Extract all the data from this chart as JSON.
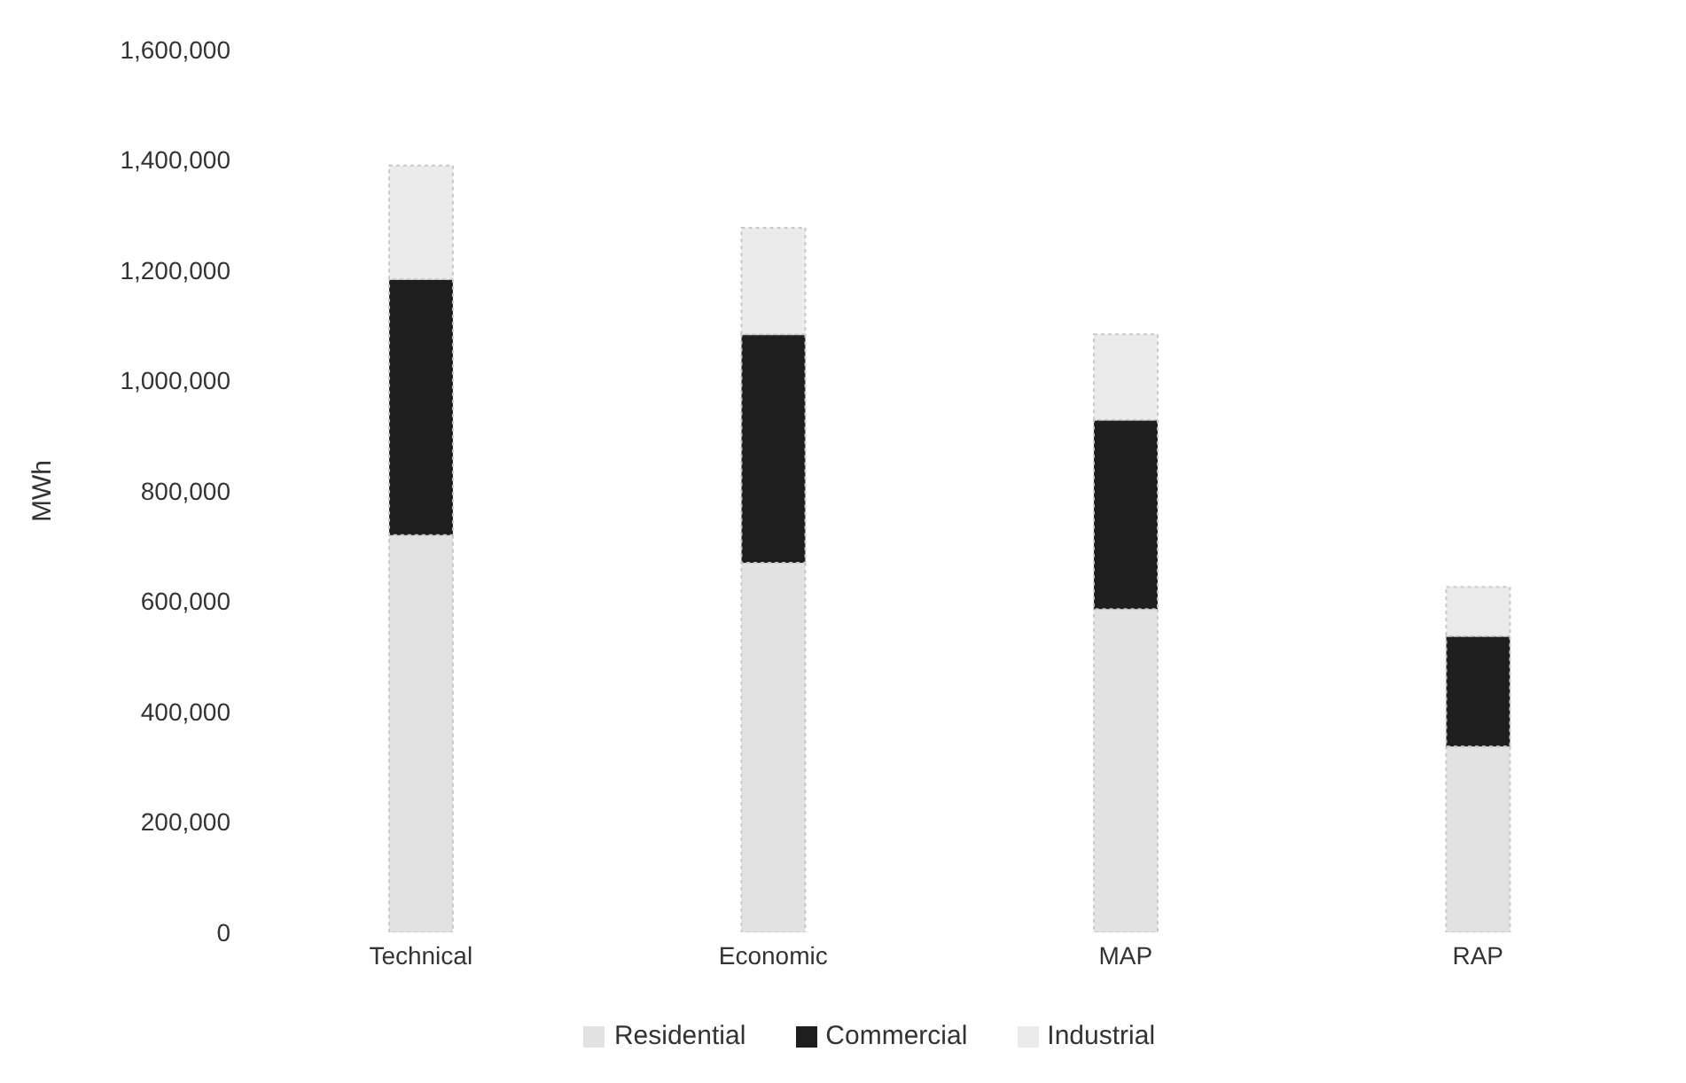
{
  "chart_data": {
    "type": "bar",
    "stacked": true,
    "ylabel": "MWh",
    "categories": [
      "Technical",
      "Economic",
      "MAP",
      "RAP"
    ],
    "series": [
      {
        "name": "Residential",
        "color": "#e2e2e2",
        "values": [
          720000,
          670000,
          586000,
          337000
        ]
      },
      {
        "name": "Commercial",
        "color": "#1e1e1e",
        "values": [
          464000,
          414000,
          343000,
          200000
        ]
      },
      {
        "name": "Industrial",
        "color": "#ebebeb",
        "values": [
          206000,
          193000,
          155000,
          89000
        ]
      }
    ],
    "ylim": [
      0,
      1600000
    ],
    "yticks": [
      0,
      {
        "value": 200000,
        "label": "200,000"
      },
      {
        "value": 400000,
        "label": "400,000"
      },
      {
        "value": 600000,
        "label": "600,000"
      },
      {
        "value": 800000,
        "label": "800,000"
      },
      {
        "value": 1000000,
        "label": "1,000,000"
      },
      {
        "value": 1200000,
        "label": "1,200,000"
      },
      {
        "value": 1400000,
        "label": "1,400,000"
      },
      {
        "value": 1600000,
        "label": "1,600,000"
      }
    ],
    "grid": false,
    "legend": "bottom"
  }
}
